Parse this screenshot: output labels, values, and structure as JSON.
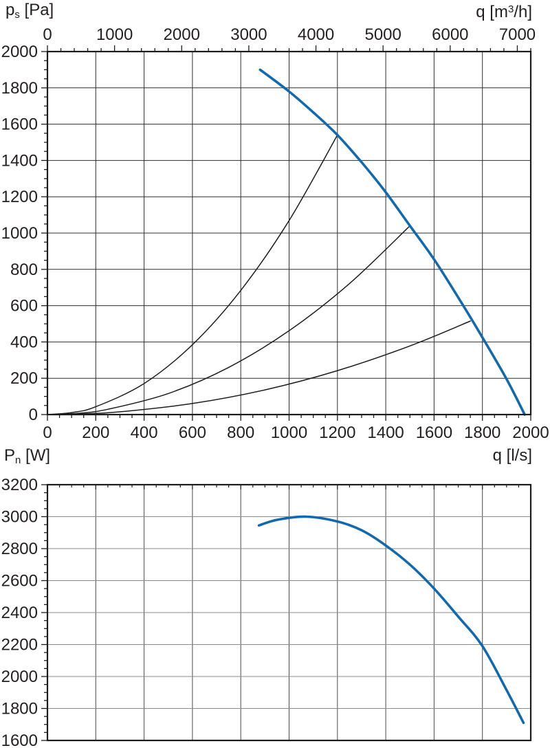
{
  "colors": {
    "background": "#ffffff",
    "curve_blue": "#1169ae",
    "system_curve_black": "#1c1c1c",
    "axis_border": "#1c1c1c",
    "grid_top_chart": "#2d2d2d",
    "grid_bottom_chart_horizontal": "#8a8a8a",
    "grid_bottom_chart_vertical": "#4a4a4a",
    "text": "#231f20"
  },
  "labels": {
    "pressure_axis": {
      "symbol": "p",
      "sub": "s",
      "unit": " [Pa]"
    },
    "flow_top_axis": {
      "prefix": "q [m",
      "sup": "3",
      "suffix": "/h]"
    },
    "power_axis": {
      "symbol": "P",
      "sub": "n",
      "unit": " [W]"
    },
    "flow_bottom_axis": "q [l/s]"
  },
  "chart_data": [
    {
      "id": "pressure-flow-chart",
      "type": "line",
      "title": "",
      "grid": "major-on",
      "legend": "none",
      "x_axis_bottom": {
        "label": "q [l/s]",
        "min": 0,
        "max": 2000,
        "major_tick": 200,
        "minor_tick": 50,
        "tick_labels": [
          0,
          200,
          400,
          600,
          800,
          1000,
          1200,
          1400,
          1600,
          1800,
          2000
        ]
      },
      "x_axis_top": {
        "label": "q [m3/h]",
        "min": 0,
        "max": 7200,
        "major_tick": 1000,
        "minor_tick": 200,
        "tick_labels": [
          0,
          1000,
          2000,
          3000,
          4000,
          5000,
          6000,
          7000
        ]
      },
      "y_axis": {
        "label": "ps [Pa]",
        "min": 0,
        "max": 2000,
        "major_tick": 200,
        "minor_tick": 50,
        "tick_labels": [
          2000,
          1800,
          1600,
          1400,
          1200,
          1000,
          800,
          600,
          400,
          200,
          0
        ]
      },
      "series": [
        {
          "name": "fan-pressure-curve",
          "color": "#1169ae",
          "width": 3.6,
          "points": [
            [
              880,
              1900
            ],
            [
              1000,
              1780
            ],
            [
              1100,
              1665
            ],
            [
              1200,
              1540
            ],
            [
              1300,
              1390
            ],
            [
              1400,
              1225
            ],
            [
              1500,
              1040
            ],
            [
              1600,
              855
            ],
            [
              1700,
              645
            ],
            [
              1800,
              425
            ],
            [
              1900,
              195
            ],
            [
              1975,
              0
            ]
          ]
        },
        {
          "name": "system-resistance-curve-1",
          "color": "#1c1c1c",
          "width": 1.5,
          "points": [
            [
              0,
              0
            ],
            [
              100,
              11
            ],
            [
              200,
              43
            ],
            [
              400,
              171
            ],
            [
              600,
              385
            ],
            [
              800,
              684
            ],
            [
              1000,
              1069
            ],
            [
              1200,
              1540
            ]
          ]
        },
        {
          "name": "system-resistance-curve-2",
          "color": "#1c1c1c",
          "width": 1.5,
          "points": [
            [
              0,
              0
            ],
            [
              125,
              7
            ],
            [
              250,
              29
            ],
            [
              500,
              116
            ],
            [
              750,
              260
            ],
            [
              1000,
              462
            ],
            [
              1250,
              722
            ],
            [
              1500,
              1040
            ]
          ]
        },
        {
          "name": "system-resistance-curve-3",
          "color": "#1c1c1c",
          "width": 1.5,
          "points": [
            [
              0,
              0
            ],
            [
              150,
              4
            ],
            [
              300,
              15
            ],
            [
              600,
              61
            ],
            [
              900,
              136
            ],
            [
              1200,
              242
            ],
            [
              1500,
              378
            ],
            [
              1750,
              515
            ]
          ]
        }
      ]
    },
    {
      "id": "power-flow-chart",
      "type": "line",
      "title": "",
      "grid": "major-on",
      "legend": "none",
      "x_axis": {
        "label": "q [l/s]",
        "min": 0,
        "max": 2000,
        "major_tick": 200,
        "minor_tick": 50,
        "tick_labels": []
      },
      "y_axis": {
        "label": "Pn [W]",
        "min": 1600,
        "max": 3200,
        "major_tick": 200,
        "minor_tick": 50,
        "tick_labels": [
          3200,
          3000,
          2800,
          2600,
          2400,
          2200,
          2000,
          1800,
          1600
        ]
      },
      "series": [
        {
          "name": "fan-power-curve",
          "color": "#1169ae",
          "width": 3.6,
          "points": [
            [
              875,
              2945
            ],
            [
              950,
              2980
            ],
            [
              1070,
              3000
            ],
            [
              1200,
              2970
            ],
            [
              1300,
              2915
            ],
            [
              1400,
              2820
            ],
            [
              1500,
              2700
            ],
            [
              1600,
              2550
            ],
            [
              1700,
              2375
            ],
            [
              1800,
              2190
            ],
            [
              1900,
              1915
            ],
            [
              1970,
              1710
            ]
          ]
        }
      ]
    }
  ]
}
